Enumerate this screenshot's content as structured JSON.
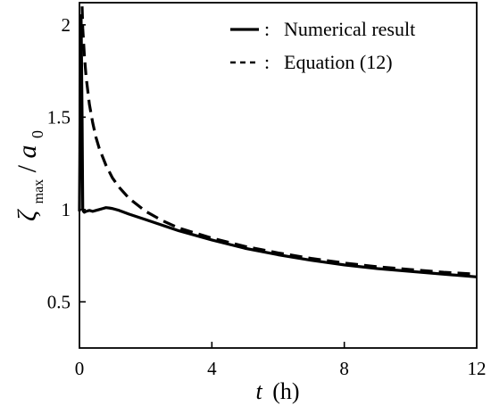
{
  "chart_data": {
    "type": "line",
    "xlabel": {
      "var": "t",
      "unit": "(h)"
    },
    "ylabel": {
      "main": "ζ",
      "sub": "max",
      "sep": "/",
      "den": "a",
      "den_sub": "0"
    },
    "xlim": [
      0,
      12
    ],
    "ylim": [
      0.25,
      2.12
    ],
    "xticks": [
      0,
      4,
      8,
      12
    ],
    "yticks": [
      0.5,
      1,
      1.5,
      2
    ],
    "xtick_labels": [
      "0",
      "4",
      "8",
      "12"
    ],
    "ytick_labels": [
      "0.5",
      "1",
      "1.5",
      "2"
    ],
    "grid": false,
    "legend_position": "top-right",
    "series": [
      {
        "name": "Numerical result",
        "legend_marker": "—",
        "style": "solid",
        "x": [
          0.0,
          0.01,
          0.02,
          0.05,
          0.08,
          0.1,
          0.12,
          0.15,
          0.2,
          0.3,
          0.4,
          0.5,
          0.6,
          0.7,
          0.8,
          0.9,
          1.0,
          1.2,
          1.5,
          2,
          2.5,
          3,
          4,
          5,
          6,
          7,
          8,
          9,
          10,
          11,
          12
        ],
        "y": [
          0.99,
          1.25,
          1.6,
          2.05,
          1.5,
          1.0,
          0.99,
          0.985,
          0.99,
          0.995,
          0.99,
          0.995,
          1.0,
          1.005,
          1.01,
          1.008,
          1.005,
          0.995,
          0.975,
          0.945,
          0.915,
          0.885,
          0.835,
          0.79,
          0.755,
          0.725,
          0.7,
          0.68,
          0.665,
          0.65,
          0.635
        ]
      },
      {
        "name": "Equation (12)",
        "legend_marker": "- - -",
        "style": "dashed",
        "x": [
          0.08,
          0.1,
          0.15,
          0.2,
          0.3,
          0.4,
          0.5,
          0.6,
          0.8,
          1.0,
          1.2,
          1.5,
          2,
          2.5,
          3,
          4,
          5,
          6,
          7,
          8,
          9,
          10,
          11,
          12
        ],
        "y": [
          2.1,
          1.98,
          1.83,
          1.72,
          1.57,
          1.47,
          1.39,
          1.33,
          1.24,
          1.17,
          1.12,
          1.06,
          0.99,
          0.94,
          0.9,
          0.845,
          0.8,
          0.765,
          0.735,
          0.71,
          0.69,
          0.675,
          0.66,
          0.65
        ]
      }
    ]
  }
}
